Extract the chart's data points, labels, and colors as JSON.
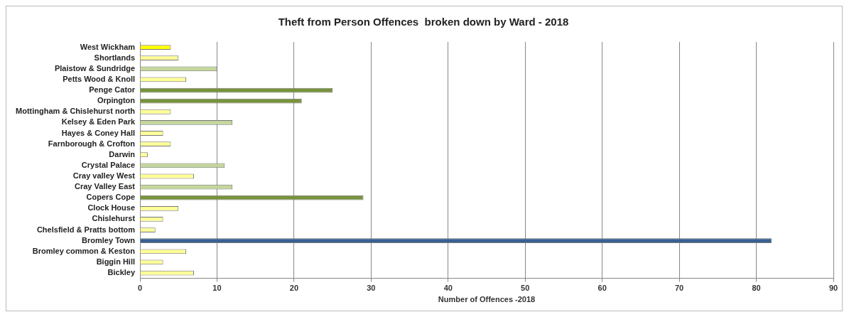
{
  "chart_data": {
    "type": "bar",
    "orientation": "horizontal",
    "title": "Theft from Person Offences  broken down by Ward - 2018",
    "xlabel": "Number of Offences -2018",
    "categories": [
      "West Wickham",
      "Shortlands",
      "Plaistow & Sundridge",
      "Petts Wood & Knoll",
      "Penge Cator",
      "Orpington",
      "Mottingham & Chislehurst north",
      "Kelsey & Eden Park",
      "Hayes & Coney Hall",
      "Farnborough & Crofton",
      "Darwin",
      "Crystal Palace",
      "Cray valley West",
      "Cray Valley East",
      "Copers Cope",
      "Clock House",
      "Chislehurst",
      "Chelsfield & Pratts bottom",
      "Bromley Town",
      "Bromley common & Keston",
      "Biggin Hill",
      "Bickley"
    ],
    "values": [
      4,
      5,
      10,
      6,
      25,
      21,
      4,
      12,
      3,
      4,
      1,
      11,
      7,
      12,
      29,
      5,
      3,
      2,
      82,
      6,
      3,
      7
    ],
    "colors": [
      "#ffff00",
      "#ffff99",
      "#c4d79b",
      "#ffff99",
      "#77933c",
      "#77933c",
      "#ffff99",
      "#c4d79b",
      "#ffff99",
      "#ffff99",
      "#ffff99",
      "#c4d79b",
      "#ffff99",
      "#c4d79b",
      "#77933c",
      "#ffff99",
      "#ffff99",
      "#ffff99",
      "#376092",
      "#ffff99",
      "#ffff99",
      "#ffff99"
    ],
    "xlim": [
      0,
      90
    ],
    "xticks": [
      0,
      10,
      20,
      30,
      40,
      50,
      60,
      70,
      80,
      90
    ],
    "grid": "x",
    "legend": false
  }
}
